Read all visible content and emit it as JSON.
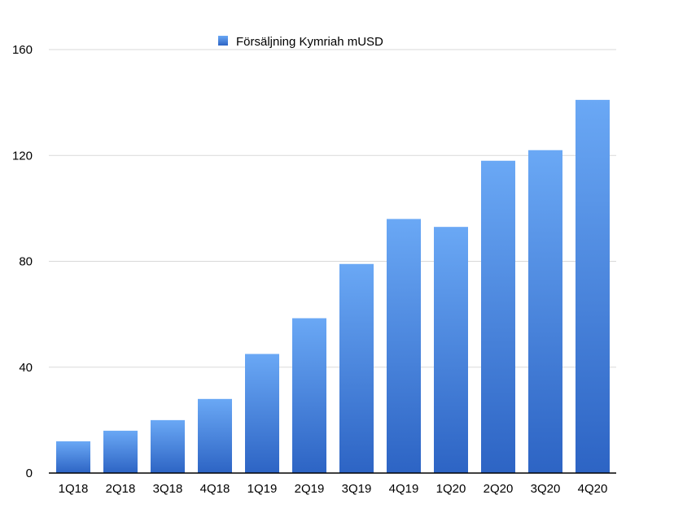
{
  "chart_data": {
    "type": "bar",
    "categories": [
      "1Q18",
      "2Q18",
      "3Q18",
      "4Q18",
      "1Q19",
      "2Q19",
      "3Q19",
      "4Q19",
      "1Q20",
      "2Q20",
      "3Q20",
      "4Q20"
    ],
    "series": [
      {
        "name": "Försäljning Kymriah mUSD",
        "values": [
          12,
          16,
          20,
          28,
          45,
          58.5,
          79,
          96,
          93,
          118,
          122,
          141
        ]
      }
    ],
    "title": "",
    "xlabel": "",
    "ylabel": "",
    "ylim": [
      0,
      160
    ],
    "yticks": [
      0,
      40,
      80,
      120,
      160
    ],
    "grid": true,
    "legend_position": "top-center",
    "colors": {
      "bar_top": "#6aa8f5",
      "bar_bottom": "#2d64c4",
      "grid": "#d9d9d9",
      "axis": "#000000"
    }
  }
}
